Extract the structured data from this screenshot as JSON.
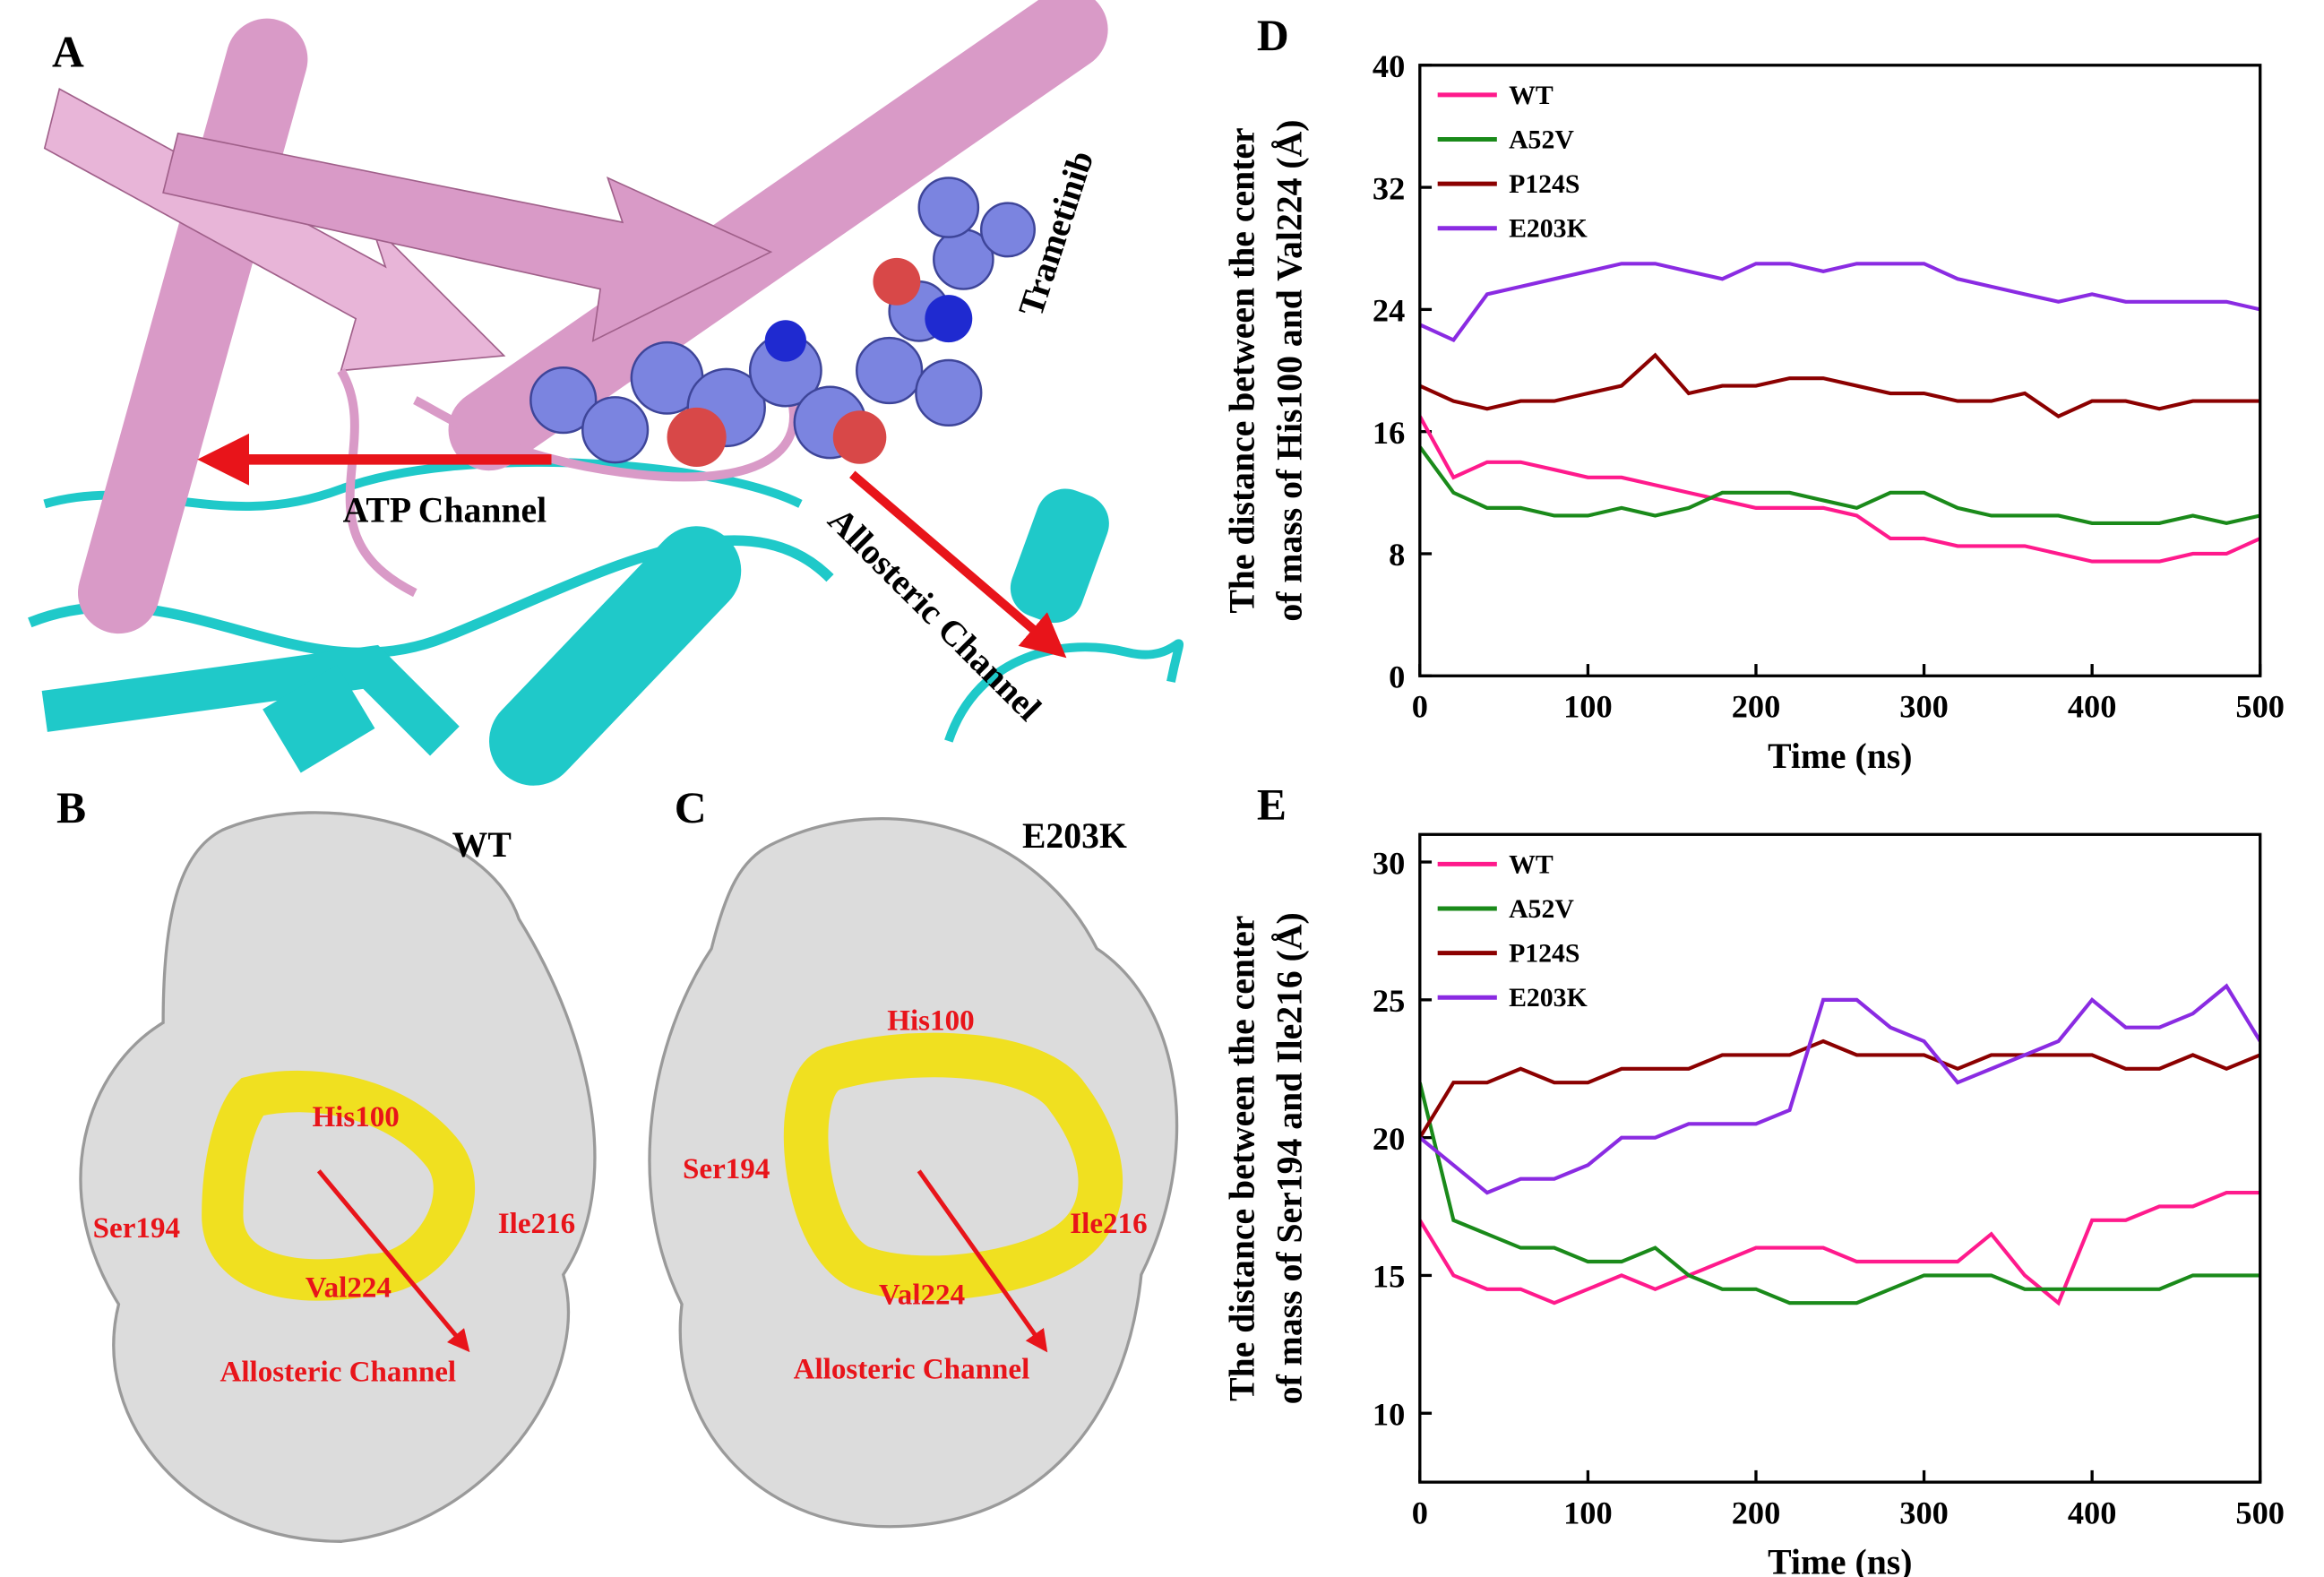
{
  "panels": {
    "A": {
      "label": "A",
      "ligand": "Trametinib",
      "atp_channel": "ATP Channel",
      "allosteric_channel": "Allosteric Channel"
    },
    "B": {
      "label": "B",
      "variant": "WT",
      "residues": [
        "His100",
        "Ser194",
        "Ile216",
        "Val224"
      ],
      "channel": "Allosteric Channel"
    },
    "C": {
      "label": "C",
      "variant": "E203K",
      "residues": [
        "His100",
        "Ser194",
        "Ile216",
        "Val224"
      ],
      "channel": "Allosteric Channel"
    }
  },
  "chart_data": [
    {
      "type": "line",
      "panel_label": "D",
      "xlabel": "Time (ns)",
      "ylabel": [
        "The distance between the center",
        "of mass of His100 and Val224 (Å)"
      ],
      "x": [
        0,
        20,
        40,
        60,
        80,
        100,
        120,
        140,
        160,
        180,
        200,
        220,
        240,
        260,
        280,
        300,
        320,
        340,
        360,
        380,
        400,
        420,
        440,
        460,
        480,
        500
      ],
      "xlim": [
        0,
        500
      ],
      "xticks": [
        0,
        100,
        200,
        300,
        400,
        500
      ],
      "ylim": [
        0,
        40
      ],
      "yticks": [
        0,
        8,
        16,
        24,
        32,
        40
      ],
      "series": [
        {
          "name": "WT",
          "color": "#ff1a8c",
          "values": [
            17,
            13,
            14,
            14,
            13.5,
            13,
            13,
            12.5,
            12,
            11.5,
            11,
            11,
            11,
            10.5,
            9,
            9,
            8.5,
            8.5,
            8.5,
            8,
            7.5,
            7.5,
            7.5,
            8,
            8,
            9
          ]
        },
        {
          "name": "A52V",
          "color": "#1a8a1a",
          "values": [
            15,
            12,
            11,
            11,
            10.5,
            10.5,
            11,
            10.5,
            11,
            12,
            12,
            12,
            11.5,
            11,
            12,
            12,
            11,
            10.5,
            10.5,
            10.5,
            10,
            10,
            10,
            10.5,
            10,
            10.5
          ]
        },
        {
          "name": "P124S",
          "color": "#8b0000",
          "values": [
            19,
            18,
            17.5,
            18,
            18,
            18.5,
            19,
            21,
            18.5,
            19,
            19,
            19.5,
            19.5,
            19,
            18.5,
            18.5,
            18,
            18,
            18.5,
            17,
            18,
            18,
            17.5,
            18,
            18,
            18
          ]
        },
        {
          "name": "E203K",
          "color": "#8a2be2",
          "values": [
            23,
            22,
            25,
            25.5,
            26,
            26.5,
            27,
            27,
            26.5,
            26,
            27,
            27,
            26.5,
            27,
            27,
            27,
            26,
            25.5,
            25,
            24.5,
            25,
            24.5,
            24.5,
            24.5,
            24.5,
            24
          ]
        }
      ]
    },
    {
      "type": "line",
      "panel_label": "E",
      "xlabel": "Time (ns)",
      "ylabel": [
        "The distance between the center",
        "of mass of Ser194 and Ile216 (Å)"
      ],
      "x": [
        0,
        20,
        40,
        60,
        80,
        100,
        120,
        140,
        160,
        180,
        200,
        220,
        240,
        260,
        280,
        300,
        320,
        340,
        360,
        380,
        400,
        420,
        440,
        460,
        480,
        500
      ],
      "xlim": [
        0,
        500
      ],
      "xticks": [
        0,
        100,
        200,
        300,
        400,
        500
      ],
      "ylim": [
        7.5,
        31
      ],
      "yticks": [
        10,
        15,
        20,
        25,
        30
      ],
      "series": [
        {
          "name": "WT",
          "color": "#ff1a8c",
          "values": [
            17,
            15,
            14.5,
            14.5,
            14,
            14.5,
            15,
            14.5,
            15,
            15.5,
            16,
            16,
            16,
            15.5,
            15.5,
            15.5,
            15.5,
            16.5,
            15,
            14,
            17,
            17,
            17.5,
            17.5,
            18,
            18
          ]
        },
        {
          "name": "A52V",
          "color": "#1a8a1a",
          "values": [
            22,
            17,
            16.5,
            16,
            16,
            15.5,
            15.5,
            16,
            15,
            14.5,
            14.5,
            14,
            14,
            14,
            14.5,
            15,
            15,
            15,
            14.5,
            14.5,
            14.5,
            14.5,
            14.5,
            15,
            15,
            15
          ]
        },
        {
          "name": "P124S",
          "color": "#8b0000",
          "values": [
            20,
            22,
            22,
            22.5,
            22,
            22,
            22.5,
            22.5,
            22.5,
            23,
            23,
            23,
            23.5,
            23,
            23,
            23,
            22.5,
            23,
            23,
            23,
            23,
            22.5,
            22.5,
            23,
            22.5,
            23
          ]
        },
        {
          "name": "E203K",
          "color": "#8a2be2",
          "values": [
            20,
            19,
            18,
            18.5,
            18.5,
            19,
            20,
            20,
            20.5,
            20.5,
            20.5,
            21,
            25,
            25,
            24,
            23.5,
            22,
            22.5,
            23,
            23.5,
            25,
            24,
            24,
            24.5,
            25.5,
            23.5
          ]
        }
      ]
    }
  ]
}
